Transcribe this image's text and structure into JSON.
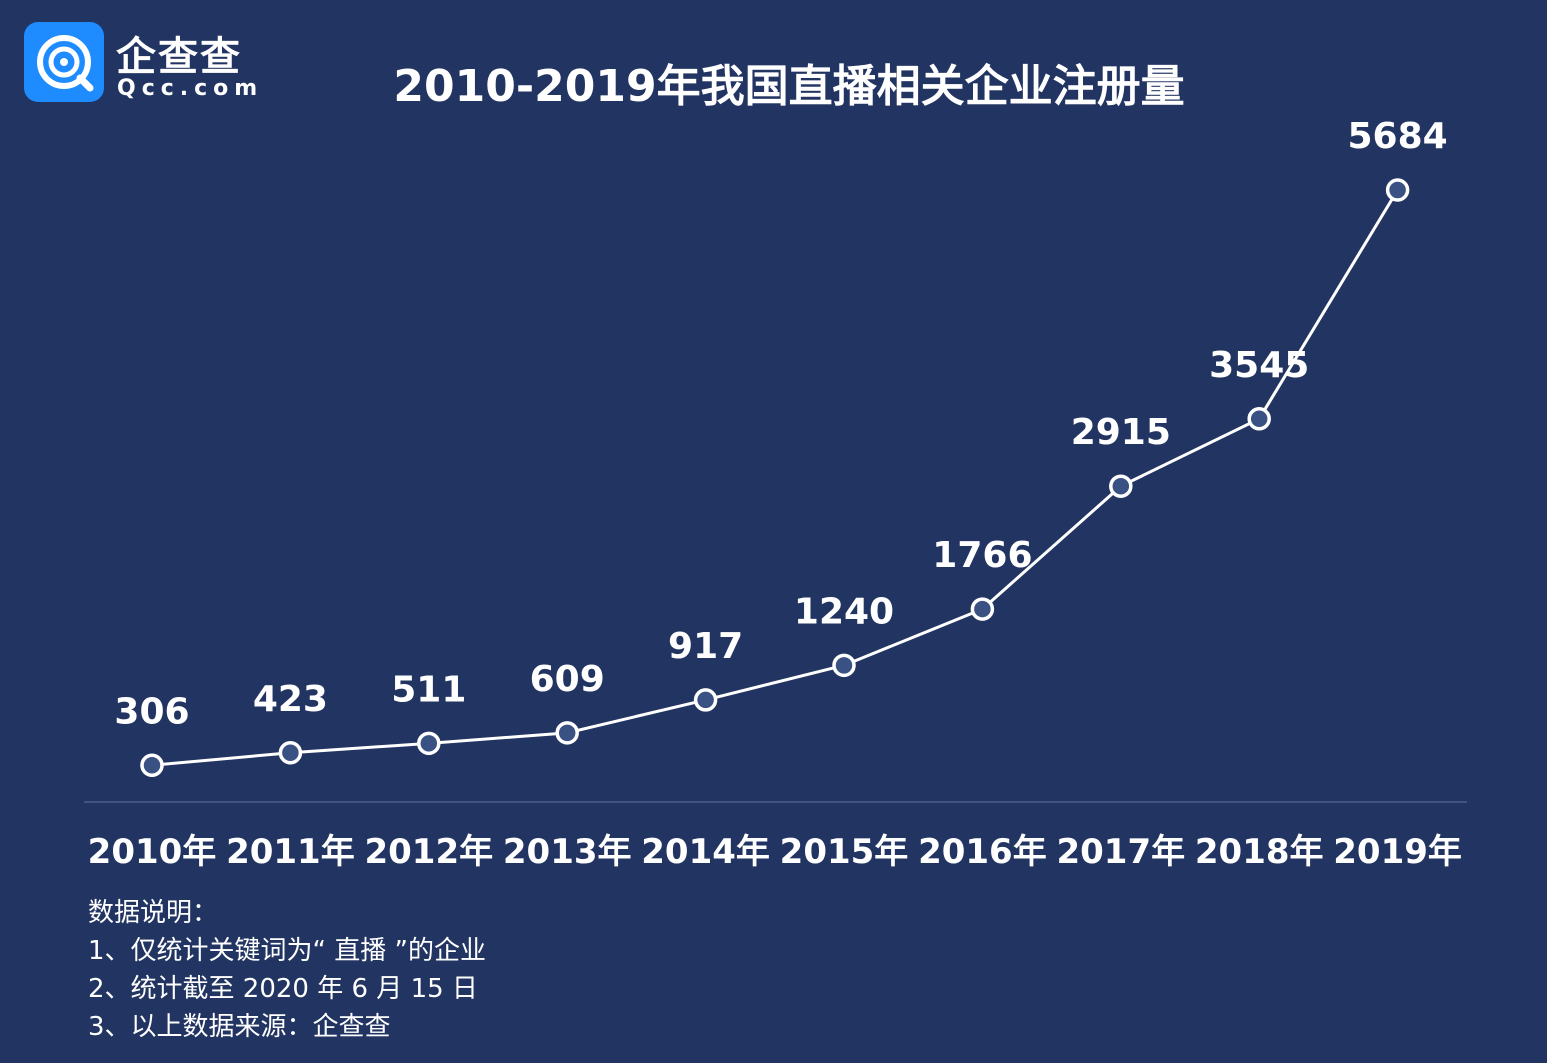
{
  "brand": {
    "name": "企查查",
    "domain": "Qcc.com"
  },
  "colors": {
    "background": "#223461",
    "line": "#ffffff",
    "marker_fill": "#3a5183",
    "axis_line": "#4a5e8c",
    "logo_blue": "#1e8bff"
  },
  "chart_data": {
    "type": "line",
    "title": "2010-2019年我国直播相关企业注册量",
    "categories": [
      "2010年",
      "2011年",
      "2012年",
      "2013年",
      "2014年",
      "2015年",
      "2016年",
      "2017年",
      "2018年",
      "2019年"
    ],
    "series": [
      {
        "values": [
          306,
          423,
          511,
          609,
          917,
          1240,
          1766,
          2915,
          3545,
          5684
        ]
      }
    ],
    "data_labels": [
      "306",
      "423",
      "511",
      "609",
      "917",
      "1240",
      "1766",
      "2915",
      "3545",
      "5684"
    ],
    "xlabel": "",
    "ylabel": "",
    "ylim": [
      0,
      5684
    ],
    "grid": false,
    "legend": "none"
  },
  "notes": {
    "heading": "数据说明：",
    "items": [
      "1、仅统计关键词为“ 直播 ”的企业",
      "2、统计截至 2020 年 6 月 15 日",
      "3、以上数据来源：企查查"
    ]
  }
}
